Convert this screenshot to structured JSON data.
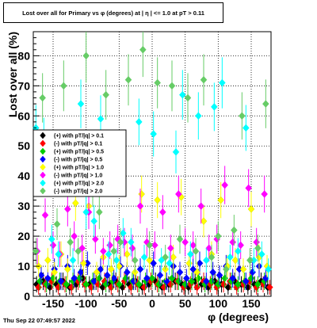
{
  "title": "Lost over all for Primary vs φ (degrees) at |  η | <= 1.0 at pT > 0.11",
  "footer_timestamp": "Thu Sep 22 07:49:57 2022",
  "chart_data": {
    "type": "scatter",
    "xlabel": "φ (degrees)",
    "ylabel": "Lost over all (%)",
    "xlim": [
      -180,
      180
    ],
    "ylim": [
      0,
      88
    ],
    "x_ticks": [
      -150,
      -100,
      -50,
      0,
      50,
      100,
      150
    ],
    "y_ticks": [
      0,
      10,
      20,
      30,
      40,
      50,
      60,
      70,
      80
    ],
    "grid": true,
    "legend_position": "left-middle",
    "series": [
      {
        "name": "(+) with pT/|q| > 0.1",
        "color": "#000000",
        "x": [
          -175,
          -165,
          -155,
          -145,
          -135,
          -125,
          -115,
          -105,
          -95,
          -85,
          -75,
          -65,
          -55,
          -45,
          -35,
          -25,
          -15,
          -5,
          5,
          15,
          25,
          35,
          45,
          55,
          65,
          75,
          85,
          95,
          105,
          115,
          125,
          135,
          145,
          155,
          165,
          175
        ],
        "y": [
          4,
          5,
          3,
          4,
          5,
          3,
          4,
          6,
          4,
          5,
          3,
          4,
          5,
          3,
          4,
          5,
          3,
          4,
          5,
          3,
          4,
          5,
          4,
          3,
          5,
          4,
          3,
          5,
          4,
          3,
          5,
          4,
          3,
          4,
          5,
          3
        ]
      },
      {
        "name": "(-) with pT/|q| > 0.1",
        "color": "#ff0000",
        "x": [
          -172,
          -162,
          -152,
          -142,
          -132,
          -122,
          -112,
          -102,
          -92,
          -82,
          -72,
          -62,
          -52,
          -42,
          -32,
          -22,
          -12,
          -2,
          8,
          18,
          28,
          38,
          48,
          58,
          68,
          78,
          88,
          98,
          108,
          118,
          128,
          138,
          148,
          158,
          168,
          178
        ],
        "y": [
          3,
          4,
          5,
          3,
          4,
          3,
          5,
          4,
          3,
          4,
          5,
          3,
          4,
          5,
          3,
          4,
          3,
          5,
          4,
          3,
          4,
          5,
          3,
          4,
          3,
          5,
          4,
          3,
          4,
          5,
          3,
          4,
          5,
          3,
          4,
          3
        ]
      },
      {
        "name": "(+) with pT/|q| > 0.5",
        "color": "#00cc00",
        "x": [
          -170,
          -160,
          -150,
          -140,
          -130,
          -120,
          -110,
          -100,
          -90,
          -80,
          -70,
          -60,
          -50,
          -40,
          -30,
          -20,
          -10,
          0,
          10,
          20,
          30,
          40,
          50,
          60,
          70,
          80,
          90,
          100,
          110,
          120,
          130,
          140,
          150,
          160,
          170
        ],
        "y": [
          5,
          4,
          6,
          5,
          4,
          5,
          6,
          4,
          5,
          6,
          4,
          5,
          4,
          6,
          5,
          4,
          5,
          6,
          4,
          5,
          6,
          5,
          4,
          5,
          6,
          4,
          5,
          4,
          6,
          5,
          4,
          5,
          6,
          4,
          5
        ]
      },
      {
        "name": "(-) with pT/|q| > 0.5",
        "color": "#0000ff",
        "x": [
          -168,
          -158,
          -148,
          -138,
          -128,
          -118,
          -108,
          -98,
          -88,
          -78,
          -68,
          -58,
          -48,
          -38,
          -28,
          -18,
          -8,
          2,
          12,
          22,
          32,
          42,
          52,
          62,
          72,
          82,
          92,
          102,
          112,
          122,
          132,
          142,
          152,
          162,
          172
        ],
        "y": [
          7,
          6,
          9,
          5,
          10,
          6,
          8,
          11,
          5,
          9,
          7,
          6,
          10,
          8,
          5,
          9,
          6,
          11,
          7,
          5,
          10,
          8,
          6,
          9,
          11,
          5,
          8,
          7,
          10,
          6,
          9,
          5,
          8,
          10,
          6
        ]
      },
      {
        "name": "(+) with pT/|q| > 1.0",
        "color": "#ffff00",
        "x": [
          -172,
          -158,
          -148,
          -138,
          -128,
          -116,
          -104,
          -96,
          -84,
          -74,
          -62,
          -50,
          -38,
          -26,
          -16,
          -4,
          8,
          20,
          32,
          44,
          56,
          68,
          78,
          90,
          104,
          114,
          126,
          138,
          150,
          162,
          174
        ],
        "y": [
          10,
          12,
          8,
          14,
          9,
          31,
          11,
          30,
          8,
          13,
          9,
          10,
          14,
          8,
          34,
          12,
          32,
          9,
          13,
          33,
          11,
          8,
          25,
          14,
          32,
          10,
          12,
          9,
          29,
          13,
          10
        ]
      },
      {
        "name": "(-) with pT/|q| > 1.0",
        "color": "#ff00ff",
        "x": [
          -174,
          -162,
          -150,
          -140,
          -128,
          -118,
          -106,
          -96,
          -86,
          -74,
          -64,
          -52,
          -42,
          -30,
          -18,
          -8,
          4,
          16,
          28,
          40,
          50,
          62,
          74,
          86,
          98,
          110,
          122,
          134,
          146,
          158,
          170
        ],
        "y": [
          15,
          27,
          17,
          14,
          29,
          20,
          16,
          28,
          19,
          15,
          17,
          19,
          18,
          16,
          30,
          18,
          17,
          28,
          16,
          34,
          18,
          17,
          30,
          16,
          19,
          37,
          18,
          17,
          36,
          18,
          34
        ]
      },
      {
        "name": "(+) with pT/|q| > 2.0",
        "color": "#00ffff",
        "x": [
          -176,
          -164,
          -152,
          -142,
          -130,
          -120,
          -108,
          -100,
          -88,
          -78,
          -66,
          -54,
          -44,
          -32,
          -20,
          -12,
          2,
          14,
          26,
          36,
          46,
          58,
          70,
          82,
          94,
          106,
          118,
          130,
          142,
          154,
          166,
          176
        ],
        "y": [
          56,
          52,
          19,
          14,
          43,
          12,
          64,
          28,
          25,
          59,
          14,
          12,
          21,
          18,
          58,
          13,
          54,
          12,
          11,
          48,
          67,
          14,
          60,
          12,
          63,
          71,
          13,
          15,
          56,
          12,
          14,
          9
        ]
      },
      {
        "name": "(-) with pT/|q| > 2.0",
        "color": "#66cc66",
        "x": [
          -176,
          -166,
          -154,
          -144,
          -134,
          -124,
          -112,
          -100,
          -90,
          -80,
          -70,
          -58,
          -48,
          -36,
          -26,
          -14,
          -4,
          8,
          20,
          30,
          42,
          54,
          66,
          78,
          90,
          100,
          112,
          124,
          136,
          148,
          160,
          172
        ],
        "y": [
          15,
          66,
          42,
          24,
          70,
          18,
          15,
          80,
          36,
          28,
          67,
          15,
          18,
          72,
          12,
          82,
          17,
          71,
          13,
          70,
          19,
          66,
          15,
          72,
          13,
          20,
          9,
          22,
          60,
          12,
          16,
          64
        ]
      }
    ]
  }
}
